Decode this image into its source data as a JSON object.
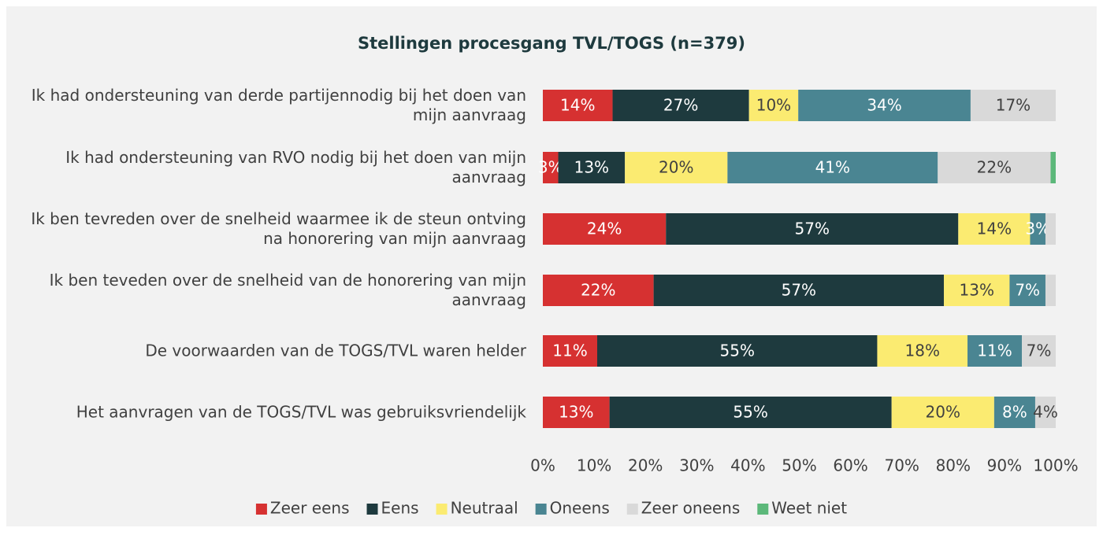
{
  "chart_data": {
    "type": "stacked_bar_horizontal",
    "title": "Stellingen procesgang TVL/TOGS (n=379)",
    "categories": [
      "Ik had ondersteuning van derde partijennodig bij het doen van mijn aanvraag",
      "Ik had ondersteuning van RVO nodig bij het doen van mijn aanvraag",
      "Ik ben tevreden over de snelheid waarmee ik de steun ontving na honorering van mijn aanvraag",
      "Ik ben teveden over de snelheid van de honorering van mijn aanvraag",
      "De voorwaarden van de TOGS/TVL waren helder",
      "Het aanvragen van de TOGS/TVL was gebruiksvriendelijk"
    ],
    "series": [
      {
        "name": "Zeer eens",
        "color": "#d63131",
        "values": [
          13.6,
          3,
          24,
          21.6,
          10.6,
          13
        ],
        "value_labels": [
          "14%",
          "3%",
          "24%",
          "22%",
          "11%",
          "13%"
        ]
      },
      {
        "name": "Eens",
        "color": "#1e3a3e",
        "values": [
          26.6,
          13,
          57,
          56.6,
          54.6,
          55
        ],
        "value_labels": [
          "27%",
          "13%",
          "57%",
          "57%",
          "55%",
          "55%"
        ]
      },
      {
        "name": "Neutraal",
        "color": "#fbeb71",
        "values": [
          9.6,
          20,
          14,
          12.8,
          17.6,
          20
        ],
        "value_labels": [
          "10%",
          "20%",
          "14%",
          "13%",
          "18%",
          "20%"
        ]
      },
      {
        "name": "Oneens",
        "color": "#4a8592",
        "values": [
          33.6,
          41,
          3,
          7,
          10.6,
          8
        ],
        "value_labels": [
          "34%",
          "41%",
          "3%",
          "7%",
          "11%",
          "8%"
        ]
      },
      {
        "name": "Zeer oneens",
        "color": "#d9d9d9",
        "values": [
          16.6,
          22,
          2,
          2,
          6.6,
          4
        ],
        "value_labels": [
          "17%",
          "22%",
          null,
          null,
          "7%",
          "4%"
        ]
      },
      {
        "name": "Weet niet",
        "color": "#5cb87a",
        "values": [
          0,
          1,
          0,
          0,
          0,
          0
        ],
        "value_labels": [
          null,
          null,
          null,
          null,
          null,
          null
        ]
      }
    ],
    "xlim": [
      0,
      100
    ],
    "xticks": [
      {
        "value": 0,
        "label": "0%"
      },
      {
        "value": 10,
        "label": "10%"
      },
      {
        "value": 20,
        "label": "20%"
      },
      {
        "value": 30,
        "label": "30%"
      },
      {
        "value": 40,
        "label": "40%"
      },
      {
        "value": 50,
        "label": "50%"
      },
      {
        "value": 60,
        "label": "60%"
      },
      {
        "value": 70,
        "label": "70%"
      },
      {
        "value": 80,
        "label": "80%"
      },
      {
        "value": 90,
        "label": "90%"
      },
      {
        "value": 100,
        "label": "100%"
      }
    ],
    "legend": "bottom"
  }
}
